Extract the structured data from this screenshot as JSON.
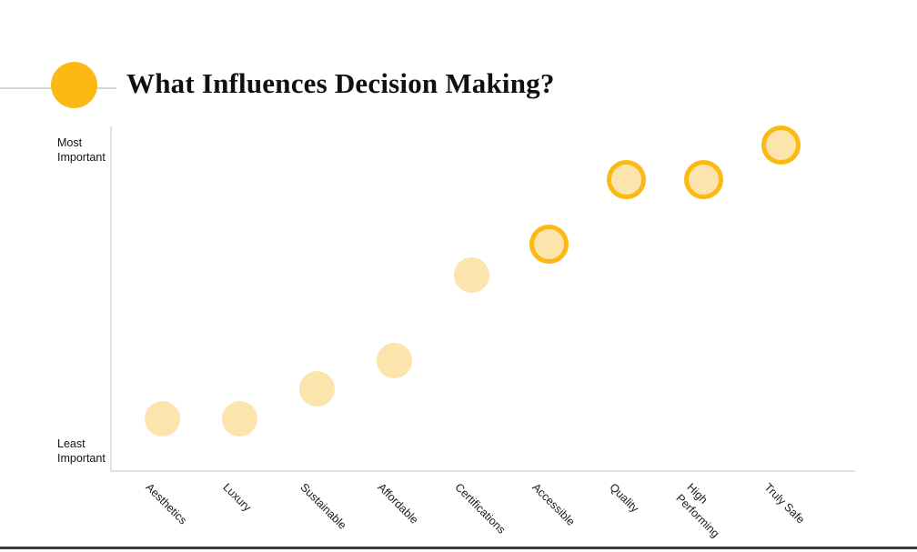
{
  "page": {
    "title": "What Influences Decision Making?",
    "accent_color": "#FDB913",
    "bubble_fill_color": "#FCE5AD",
    "axis_line_color": "#E7E3DA",
    "bottom_rule_color": "#3A3A3A",
    "background_color": "#FFFFFF"
  },
  "chart_data": {
    "type": "scatter",
    "title": "What Influences Decision Making?",
    "xlabel": "",
    "ylabel": "Importance",
    "ymax_label": "Most\nImportant",
    "ymin_label": "Least\nImportant",
    "ylim": [
      0,
      100
    ],
    "grid": false,
    "legend": "none",
    "categories": [
      "Aesthetics",
      "Luxury",
      "Sustainable",
      "Affordable",
      "Certifications",
      "Accessible",
      "Quality",
      "High\nPerforming",
      "Truly Safe"
    ],
    "values": [
      15,
      15,
      24,
      32,
      57,
      66,
      85,
      85,
      95
    ],
    "highlighted": [
      false,
      false,
      false,
      false,
      false,
      true,
      true,
      true,
      true
    ],
    "note": "values are estimated importance (0-100) read from dot heights between the Least Important and Most Important axis extents; highlighted dots have an amber ring"
  }
}
